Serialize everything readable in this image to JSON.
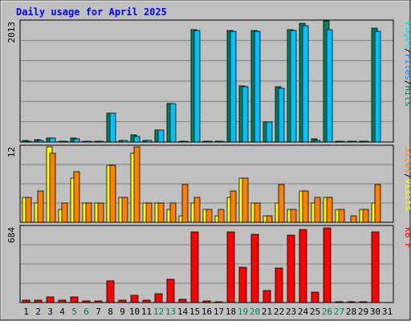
{
  "title": "Daily usage for April 2025",
  "colors": {
    "background": "#c0c0c0",
    "hits": "#00805c",
    "files": "#00c0ff",
    "pages": "#00e0e0",
    "visits": "#ffff00",
    "sites": "#ff8000",
    "kbytes": "#ff0000",
    "title": "#0000ff",
    "weekend_day": "#00805c"
  },
  "days": [
    "1",
    "2",
    "3",
    "4",
    "5",
    "6",
    "7",
    "8",
    "9",
    "10",
    "11",
    "12",
    "13",
    "14",
    "15",
    "16",
    "17",
    "18",
    "19",
    "20",
    "21",
    "22",
    "23",
    "24",
    "25",
    "26",
    "27",
    "28",
    "29",
    "30",
    "31"
  ],
  "weekend_days": [
    "5",
    "6",
    "12",
    "13",
    "19",
    "20",
    "26",
    "27"
  ],
  "chart_data": [
    {
      "type": "bar",
      "panel": "top",
      "ymax_label": "2013",
      "ylim": [
        0,
        2013
      ],
      "right_labels": [
        {
          "text": "Pages",
          "color": "#00e0e0"
        },
        {
          "text": "/",
          "color": "#000000"
        },
        {
          "text": "Files",
          "color": "#0080ff"
        },
        {
          "text": "/",
          "color": "#000000"
        },
        {
          "text": "Hits",
          "color": "#00805c"
        }
      ],
      "categories": [
        "1",
        "2",
        "3",
        "4",
        "5",
        "6",
        "7",
        "8",
        "9",
        "10",
        "11",
        "12",
        "13",
        "14",
        "15",
        "16",
        "17",
        "18",
        "19",
        "20",
        "21",
        "22",
        "23",
        "24",
        "25",
        "26",
        "27",
        "28",
        "29",
        "30",
        "31"
      ],
      "series": [
        {
          "name": "Hits",
          "color": "#00805c",
          "values": [
            30,
            40,
            70,
            20,
            70,
            20,
            20,
            480,
            30,
            120,
            30,
            200,
            640,
            20,
            1880,
            20,
            20,
            1860,
            940,
            1860,
            340,
            920,
            1880,
            1990,
            60,
            2020,
            20,
            20,
            20,
            1900,
            0
          ]
        },
        {
          "name": "Files",
          "color": "#00c0ff",
          "values": [
            20,
            30,
            70,
            20,
            60,
            20,
            20,
            480,
            30,
            100,
            30,
            200,
            640,
            20,
            1870,
            20,
            20,
            1850,
            920,
            1850,
            330,
            900,
            1860,
            1950,
            30,
            1880,
            20,
            20,
            20,
            1850,
            0
          ]
        }
      ]
    },
    {
      "type": "bar",
      "panel": "middle",
      "ymax_label": "12",
      "ylim": [
        0,
        12
      ],
      "right_labels": [
        {
          "text": "Sites",
          "color": "#ff8000"
        },
        {
          "text": "/",
          "color": "#000000"
        },
        {
          "text": "Visits",
          "color": "#ffff00"
        }
      ],
      "categories": [
        "1",
        "2",
        "3",
        "4",
        "5",
        "6",
        "7",
        "8",
        "9",
        "10",
        "11",
        "12",
        "13",
        "14",
        "15",
        "16",
        "17",
        "18",
        "19",
        "20",
        "21",
        "22",
        "23",
        "24",
        "25",
        "26",
        "27",
        "28",
        "29",
        "30",
        "31"
      ],
      "series": [
        {
          "name": "Visits",
          "color": "#ffff00",
          "values": [
            4,
            3,
            12,
            2,
            7,
            3,
            3,
            9,
            4,
            11,
            3,
            3,
            2,
            1,
            3,
            2,
            1,
            4,
            7,
            3,
            1,
            3,
            2,
            5,
            3,
            4,
            2,
            0,
            2,
            3,
            0
          ]
        },
        {
          "name": "Sites",
          "color": "#ff8000",
          "values": [
            4,
            5,
            11,
            3,
            8,
            3,
            3,
            9,
            4,
            12,
            3,
            3,
            3,
            6,
            4,
            2,
            2,
            5,
            7,
            3,
            1,
            6,
            2,
            5,
            4,
            4,
            2,
            1,
            2,
            6,
            0
          ]
        }
      ]
    },
    {
      "type": "bar",
      "panel": "bottom",
      "ymax_label": "684",
      "ylim": [
        0,
        684
      ],
      "right_labels": [
        {
          "text": "kB F",
          "color": "#ff0000"
        }
      ],
      "categories": [
        "1",
        "2",
        "3",
        "4",
        "5",
        "6",
        "7",
        "8",
        "9",
        "10",
        "11",
        "12",
        "13",
        "14",
        "15",
        "16",
        "17",
        "18",
        "19",
        "20",
        "21",
        "22",
        "23",
        "24",
        "25",
        "26",
        "27",
        "28",
        "29",
        "30",
        "31"
      ],
      "series": [
        {
          "name": "kB F",
          "color": "#ff0000",
          "values": [
            25,
            25,
            50,
            20,
            50,
            15,
            15,
            200,
            25,
            65,
            25,
            80,
            210,
            30,
            640,
            15,
            10,
            640,
            320,
            620,
            110,
            310,
            610,
            660,
            95,
            680,
            10,
            10,
            10,
            640,
            0
          ]
        }
      ]
    }
  ]
}
